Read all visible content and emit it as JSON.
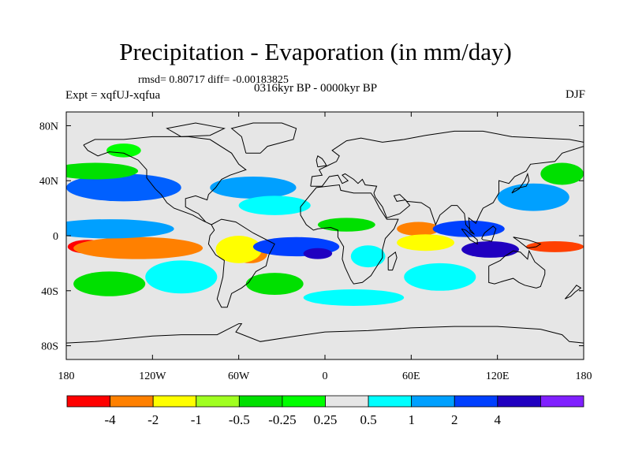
{
  "title": "Precipitation - Evaporation (in mm/day)",
  "stats_line": "rmsd= 0.80717  diff= -0.00183825",
  "period_line": "0316kyr BP - 0000kyr BP",
  "experiment_line": "Expt = xqfUJ-xqfua",
  "season": "DJF",
  "map": {
    "projection": "cylindrical-equidistant",
    "lon_range": [
      -180,
      180
    ],
    "lat_range": [
      -90,
      90
    ],
    "background_color": "#e6e6e6",
    "coastline_color": "#000000",
    "x_ticks": [
      {
        "lon": -180,
        "label": "180"
      },
      {
        "lon": -120,
        "label": "120W"
      },
      {
        "lon": -60,
        "label": "60W"
      },
      {
        "lon": 0,
        "label": "0"
      },
      {
        "lon": 60,
        "label": "60E"
      },
      {
        "lon": 120,
        "label": "120E"
      },
      {
        "lon": 180,
        "label": "180"
      }
    ],
    "y_ticks": [
      {
        "lat": 80,
        "label": "80N"
      },
      {
        "lat": 40,
        "label": "40N"
      },
      {
        "lat": 0,
        "label": "0"
      },
      {
        "lat": -40,
        "label": "40S"
      },
      {
        "lat": -80,
        "label": "80S"
      }
    ],
    "anomaly_regions": [
      {
        "name": "pacific-equatorial-dry-west",
        "lon": -165,
        "lat": -8,
        "rlon": 14,
        "rlat": 5,
        "color": "#ff0000"
      },
      {
        "name": "pacific-equatorial-dry-band",
        "lon": -130,
        "lat": -9,
        "rlon": 45,
        "rlat": 8,
        "color": "#ff8000"
      },
      {
        "name": "pacific-itcz-wet",
        "lon": -150,
        "lat": 5,
        "rlon": 45,
        "rlat": 7,
        "color": "#00a0ff"
      },
      {
        "name": "north-pacific-wet",
        "lon": -140,
        "lat": 35,
        "rlon": 40,
        "rlat": 10,
        "color": "#0060ff"
      },
      {
        "name": "north-pacific-green",
        "lon": -160,
        "lat": 47,
        "rlon": 30,
        "rlat": 6,
        "color": "#00e000"
      },
      {
        "name": "gulf-of-alaska",
        "lon": -140,
        "lat": 62,
        "rlon": 12,
        "rlat": 5,
        "color": "#00ff00"
      },
      {
        "name": "south-pacific-green",
        "lon": -150,
        "lat": -35,
        "rlon": 25,
        "rlat": 9,
        "color": "#00e000"
      },
      {
        "name": "southeast-pacific-cyan",
        "lon": -100,
        "lat": -30,
        "rlon": 25,
        "rlat": 12,
        "color": "#00ffff"
      },
      {
        "name": "amazon-dry",
        "lon": -52,
        "lat": -13,
        "rlon": 12,
        "rlat": 7,
        "color": "#ff8000"
      },
      {
        "name": "amazon-yellow",
        "lon": -60,
        "lat": -10,
        "rlon": 16,
        "rlat": 10,
        "color": "#ffff00"
      },
      {
        "name": "south-atlantic-wet",
        "lon": -20,
        "lat": -8,
        "rlon": 30,
        "rlat": 7,
        "color": "#0040ff"
      },
      {
        "name": "south-atlantic-core",
        "lon": -5,
        "lat": -13,
        "rlon": 10,
        "rlat": 4,
        "color": "#2000c0"
      },
      {
        "name": "north-atlantic-wet",
        "lon": -50,
        "lat": 35,
        "rlon": 30,
        "rlat": 8,
        "color": "#00a0ff"
      },
      {
        "name": "north-atlantic-cyan",
        "lon": -35,
        "lat": 22,
        "rlon": 25,
        "rlat": 7,
        "color": "#00ffff"
      },
      {
        "name": "south-atlantic-green",
        "lon": -35,
        "lat": -35,
        "rlon": 20,
        "rlat": 8,
        "color": "#00e000"
      },
      {
        "name": "africa-sahel-green",
        "lon": 15,
        "lat": 8,
        "rlon": 20,
        "rlat": 5,
        "color": "#00e000"
      },
      {
        "name": "southern-africa",
        "lon": 30,
        "lat": -15,
        "rlon": 12,
        "rlat": 8,
        "color": "#00ffff"
      },
      {
        "name": "arabian-sea-dry",
        "lon": 65,
        "lat": 5,
        "rlon": 15,
        "rlat": 5,
        "color": "#ff8000"
      },
      {
        "name": "indian-ocean-yellow",
        "lon": 70,
        "lat": -5,
        "rlon": 20,
        "rlat": 6,
        "color": "#ffff00"
      },
      {
        "name": "bay-of-bengal-wet",
        "lon": 100,
        "lat": 5,
        "rlon": 25,
        "rlat": 6,
        "color": "#0040ff"
      },
      {
        "name": "maritime-continent-wet",
        "lon": 115,
        "lat": -10,
        "rlon": 20,
        "rlat": 6,
        "color": "#2000c0"
      },
      {
        "name": "west-pacific-dry",
        "lon": 160,
        "lat": -8,
        "rlon": 20,
        "rlat": 4,
        "color": "#ff4000"
      },
      {
        "name": "northwest-pacific-wet",
        "lon": 145,
        "lat": 28,
        "rlon": 25,
        "rlat": 10,
        "color": "#00a0ff"
      },
      {
        "name": "kuroshio-green",
        "lon": 165,
        "lat": 45,
        "rlon": 15,
        "rlat": 8,
        "color": "#00e000"
      },
      {
        "name": "south-indian-cyan",
        "lon": 80,
        "lat": -30,
        "rlon": 25,
        "rlat": 10,
        "color": "#00ffff"
      },
      {
        "name": "southern-ocean-cyan",
        "lon": 20,
        "lat": -45,
        "rlon": 35,
        "rlat": 6,
        "color": "#00ffff"
      }
    ]
  },
  "colorbar": {
    "colors": [
      "#ff0000",
      "#ff8000",
      "#ffff00",
      "#a0ff20",
      "#00e000",
      "#00ff00",
      "#e6e6e6",
      "#00ffff",
      "#00a0ff",
      "#0040ff",
      "#2000c0",
      "#8020ff"
    ],
    "labels": [
      "-4",
      "-2",
      "-1",
      "-0.5",
      "-0.25",
      "0.25",
      "0.5",
      "1",
      "2",
      "4"
    ]
  }
}
